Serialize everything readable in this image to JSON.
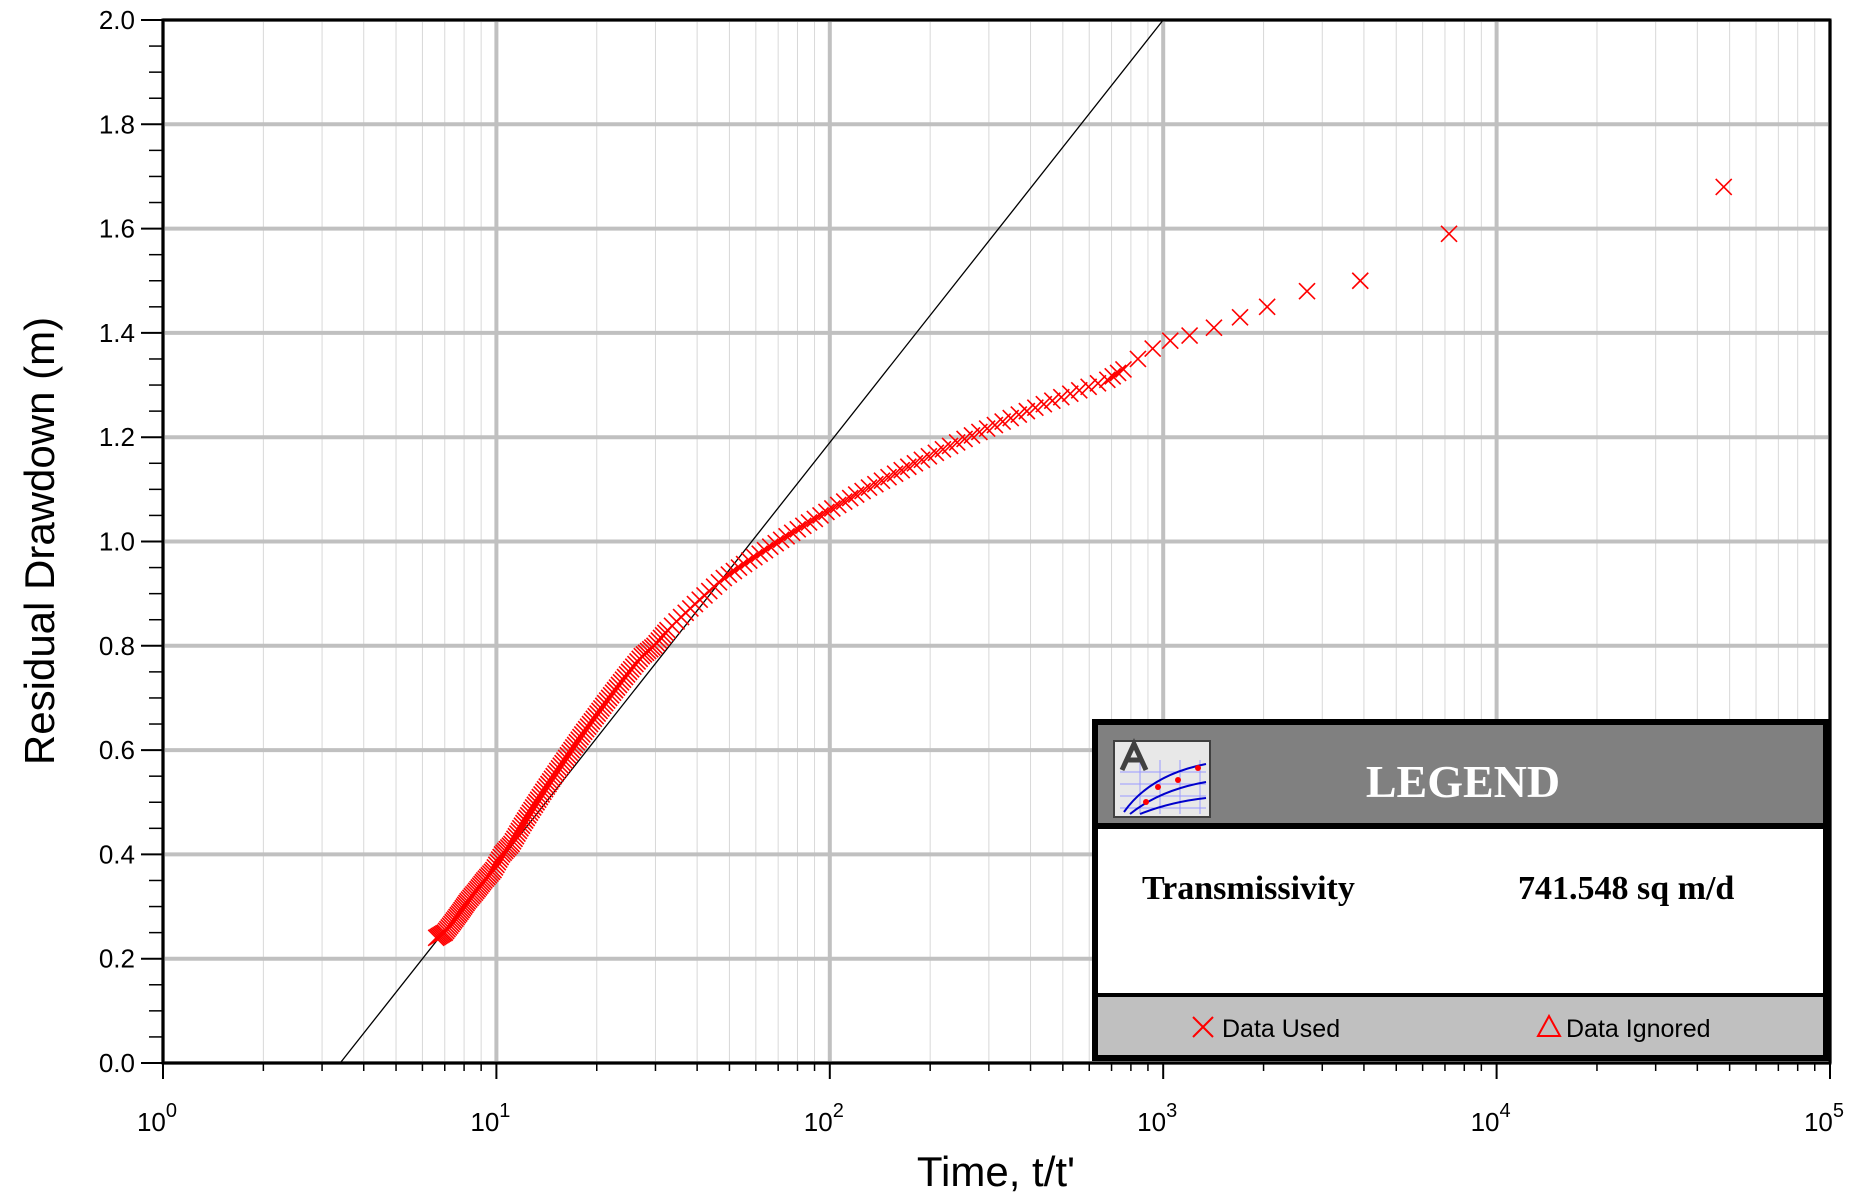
{
  "chart_data": {
    "type": "scatter",
    "title": "",
    "xlabel": "Time, t/t'",
    "ylabel": "Residual Drawdown (m)",
    "x_scale": "log",
    "xlim": [
      1,
      100000
    ],
    "ylim": [
      0.0,
      2.0
    ],
    "y_ticks": [
      "0.0",
      "0.2",
      "0.4",
      "0.6",
      "0.8",
      "1.0",
      "1.2",
      "1.4",
      "1.6",
      "1.8",
      "2.0"
    ],
    "x_tick_base": "10",
    "x_tick_exponents": [
      "0",
      "1",
      "2",
      "3",
      "4",
      "5"
    ],
    "grid": true,
    "series": [
      {
        "name": "Data Used",
        "marker": "x",
        "color": "#ff0000",
        "x": [
          6.6,
          7.0,
          7.4,
          7.8,
          8.2,
          8.7,
          9.2,
          9.8,
          10.4,
          11.1,
          11.8,
          12.6,
          13.5,
          14.5,
          15.6,
          16.8,
          18.1,
          19.6,
          21.2,
          23.0,
          25.0,
          27.3,
          29.8,
          32.6,
          35.8,
          39.4,
          43.5,
          48.1,
          53.4,
          59.4,
          66.3,
          74.2,
          83.3,
          93.8,
          106,
          120,
          137,
          157,
          180,
          208,
          241,
          281,
          330,
          390,
          465,
          560,
          680,
          760,
          840,
          930,
          1050,
          1200,
          1420,
          1700,
          2050,
          2700,
          3900,
          7200,
          48000
        ],
        "y": [
          0.24,
          0.25,
          0.27,
          0.29,
          0.31,
          0.33,
          0.35,
          0.37,
          0.4,
          0.42,
          0.45,
          0.48,
          0.51,
          0.54,
          0.57,
          0.6,
          0.63,
          0.66,
          0.69,
          0.72,
          0.75,
          0.78,
          0.8,
          0.83,
          0.855,
          0.88,
          0.905,
          0.93,
          0.95,
          0.97,
          0.99,
          1.01,
          1.03,
          1.05,
          1.07,
          1.09,
          1.11,
          1.13,
          1.15,
          1.17,
          1.19,
          1.21,
          1.23,
          1.25,
          1.27,
          1.29,
          1.31,
          1.33,
          1.35,
          1.37,
          1.385,
          1.395,
          1.41,
          1.43,
          1.45,
          1.48,
          1.5,
          1.59,
          1.68
        ]
      }
    ],
    "fit_line": {
      "x": [
        3.4,
        1000
      ],
      "y": [
        0.0,
        2.0
      ]
    },
    "legend_placement": "bottom-right"
  },
  "legend": {
    "title": "LEGEND",
    "param_label": "Transmissivity",
    "param_value": "741.548  sq m/d",
    "used_label": "Data Used",
    "ignored_label": "Data Ignored"
  },
  "colors": {
    "marker": "#ff0000",
    "legend_header": "#808080",
    "legend_footer": "#c0c0c0",
    "grid_major": "#c0c0c0",
    "grid_minor": "#d8d8d8"
  }
}
